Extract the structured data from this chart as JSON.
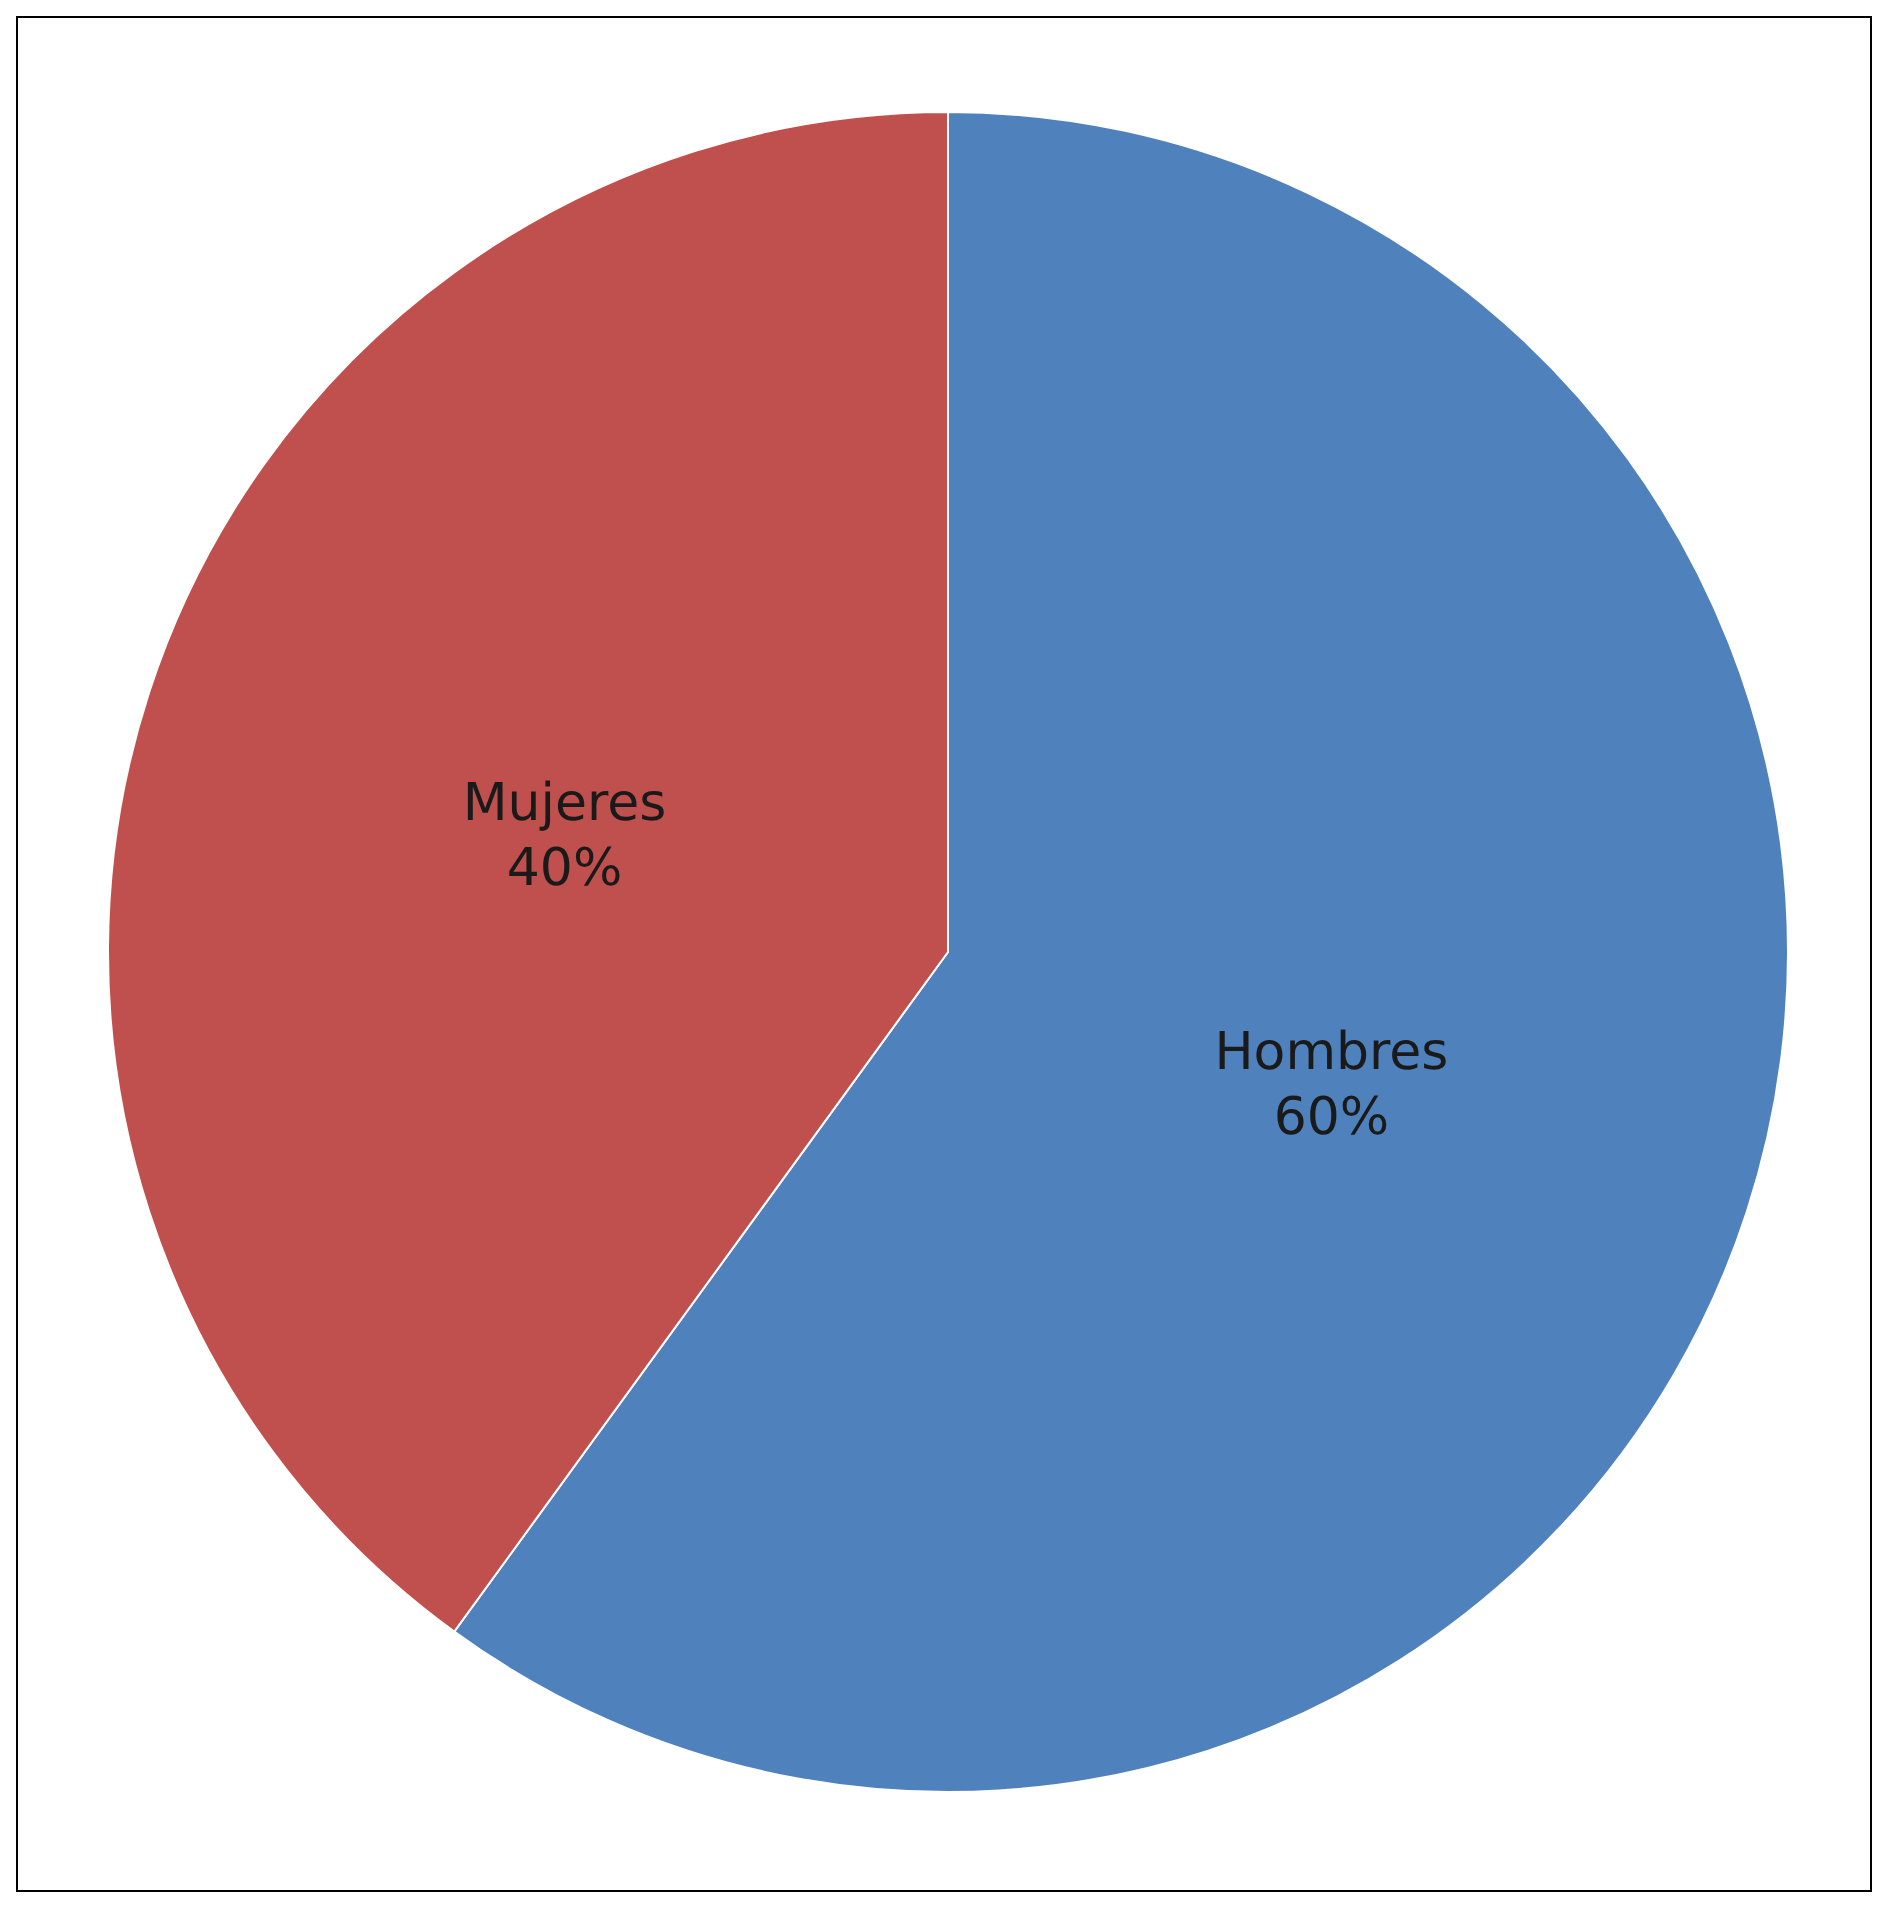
{
  "chart_data": {
    "type": "pie",
    "categories": [
      "Hombres",
      "Mujeres"
    ],
    "values": [
      60,
      40
    ],
    "colors": [
      "#4f81bd",
      "#c0504d"
    ],
    "value_labels": [
      "60%",
      "40%"
    ],
    "legend": false
  }
}
